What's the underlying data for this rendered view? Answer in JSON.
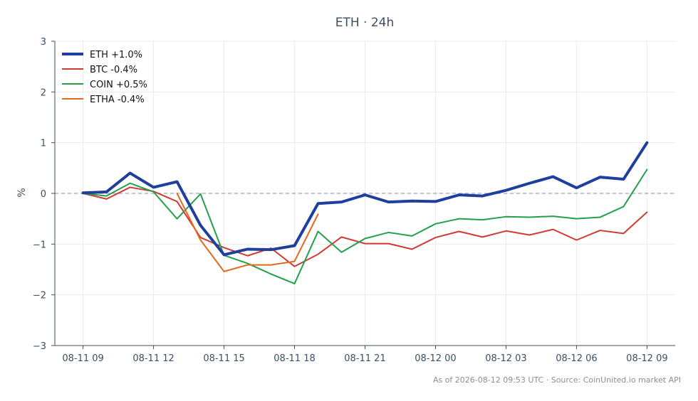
{
  "chart_data": {
    "type": "line",
    "title": "ETH · 24h",
    "xlabel": "",
    "ylabel": "%",
    "ylim": [
      -3,
      3
    ],
    "yticks": [
      -3,
      -2,
      -1,
      0,
      1,
      2,
      3
    ],
    "ytick_labels": [
      "−3",
      "−2",
      "−1",
      "0",
      "1",
      "2",
      "3"
    ],
    "x": [
      0,
      1,
      2,
      3,
      4,
      5,
      6,
      7,
      8,
      9,
      10,
      11,
      12,
      13,
      14,
      15,
      16,
      17,
      18,
      19,
      20,
      21,
      22,
      23,
      24
    ],
    "xlim": [
      -1.2,
      25.2
    ],
    "xticks": [
      0,
      3,
      6,
      9,
      12,
      15,
      18,
      21,
      24
    ],
    "xtick_labels": [
      "08-11 09",
      "08-11 12",
      "08-11 15",
      "08-11 18",
      "08-11 21",
      "08-12 00",
      "08-12 03",
      "08-12 06",
      "08-12 09"
    ],
    "grid": true,
    "zero_line": true,
    "legend_position": "top-left",
    "series": [
      {
        "name": "ETH +1.0%",
        "color": "#1f3f9e",
        "width": 4,
        "values": [
          0.01,
          0.03,
          0.4,
          0.12,
          0.23,
          -0.63,
          -1.21,
          -1.1,
          -1.11,
          -1.03,
          -0.2,
          -0.17,
          -0.03,
          -0.17,
          -0.15,
          -0.16,
          -0.03,
          -0.05,
          0.06,
          0.2,
          0.33,
          0.11,
          0.32,
          0.28,
          1.0
        ]
      },
      {
        "name": "BTC -0.4%",
        "color": "#d03a35",
        "width": 2,
        "values": [
          0.0,
          -0.11,
          0.12,
          0.04,
          -0.16,
          -0.87,
          -1.07,
          -1.23,
          -1.08,
          -1.44,
          -1.2,
          -0.86,
          -0.99,
          -0.99,
          -1.1,
          -0.87,
          -0.75,
          -0.86,
          -0.74,
          -0.82,
          -0.71,
          -0.92,
          -0.73,
          -0.79,
          -0.37
        ]
      },
      {
        "name": "COIN +0.5%",
        "color": "#22a04a",
        "width": 2,
        "values": [
          0.0,
          -0.05,
          0.2,
          0.03,
          -0.5,
          -0.01,
          -1.22,
          -1.38,
          -1.59,
          -1.78,
          -0.75,
          -1.16,
          -0.89,
          -0.77,
          -0.84,
          -0.6,
          -0.5,
          -0.52,
          -0.46,
          -0.47,
          -0.45,
          -0.5,
          -0.47,
          -0.26,
          0.47
        ]
      },
      {
        "name": "ETHA -0.4%",
        "color": "#e06a1e",
        "width": 2,
        "values": [
          null,
          null,
          null,
          null,
          0.0,
          -0.92,
          -1.54,
          -1.41,
          -1.41,
          -1.34,
          -0.41,
          null,
          null,
          null,
          null,
          null,
          null,
          null,
          null,
          null,
          null,
          null,
          null,
          null,
          null
        ]
      }
    ]
  },
  "footer": "As of 2026-08-12 09:53 UTC · Source: CoinUnited.io market API"
}
